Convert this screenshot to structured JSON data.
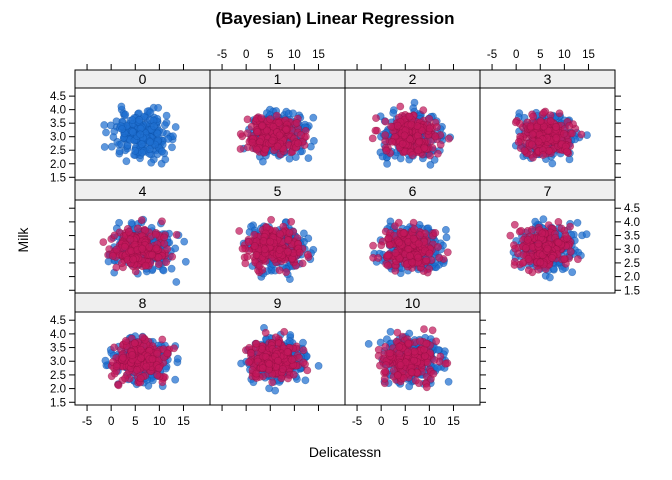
{
  "chart_data": {
    "type": "scatter",
    "title": "(Bayesian) Linear Regression",
    "xlabel": "Delicatessn",
    "ylabel": "Milk",
    "xlim": [
      -7.5,
      20.5
    ],
    "ylim": [
      1.4,
      4.8
    ],
    "x_ticks": [
      -5,
      0,
      5,
      10,
      15
    ],
    "y_ticks": [
      1.5,
      2.0,
      2.5,
      3.0,
      3.5,
      4.0,
      4.5
    ],
    "x_tick_labels": [
      "-5",
      "0",
      "5",
      "10",
      "15"
    ],
    "y_tick_labels": [
      "1.5",
      "2.0",
      "2.5",
      "3.0",
      "3.5",
      "4.0",
      "4.5"
    ],
    "layout": "4 columns x 3 rows of panels, panels 8-10 on bottom row",
    "series": [
      {
        "color": "#1f6fd0",
        "x_center": 6.5,
        "x_spread": 4.0,
        "y_center": 3.05,
        "y_spread": 0.55,
        "n": 220
      },
      {
        "color": "#c2185b",
        "x_center": 6.0,
        "x_spread": 3.8,
        "y_center": 3.05,
        "y_spread": 0.5,
        "n": 200
      }
    ],
    "panels": [
      {
        "label": "0",
        "red_points": false
      },
      {
        "label": "1",
        "red_points": true
      },
      {
        "label": "2",
        "red_points": true
      },
      {
        "label": "3",
        "red_points": true
      },
      {
        "label": "4",
        "red_points": true
      },
      {
        "label": "5",
        "red_points": true
      },
      {
        "label": "6",
        "red_points": true
      },
      {
        "label": "7",
        "red_points": true
      },
      {
        "label": "8",
        "red_points": true
      },
      {
        "label": "9",
        "red_points": true
      },
      {
        "label": "10",
        "red_points": true
      }
    ]
  }
}
